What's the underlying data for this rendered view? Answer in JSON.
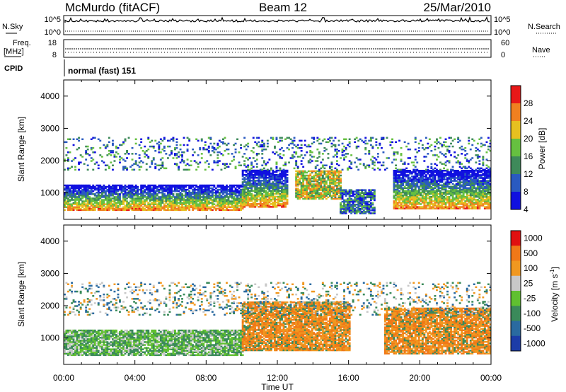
{
  "header": {
    "station": "McMurdo (fitACF)",
    "beam": "Beam 12",
    "date": "25/Mar/2010"
  },
  "aux_panels": {
    "nsky_label": "N.Sky",
    "nsearch_label": "N.Search",
    "noise_ticks_left": [
      "10^5",
      "10^0"
    ],
    "noise_ticks_right": [
      "10^5",
      "10^0"
    ],
    "freq_label_line1": "Freq.",
    "freq_label_line2": "[MHz]",
    "freq_ticks": [
      "18",
      "8"
    ],
    "nave_label": "Nave",
    "nave_ticks": [
      "60",
      "0"
    ],
    "cpid_label": "CPID",
    "cpid_value": "normal (fast) 151"
  },
  "colors": {
    "frame": "#000000",
    "background": "#ffffff"
  },
  "chart_data": [
    {
      "type": "heatmap",
      "name": "power",
      "xlabel": "Time UT",
      "ylabel": "Slant Range [km]",
      "xlim": [
        0,
        24
      ],
      "ylim": [
        180,
        4500
      ],
      "x_ticks": [
        "00:00",
        "04:00",
        "08:00",
        "12:00",
        "16:00",
        "20:00",
        "00:00"
      ],
      "y_ticks": [
        "1000",
        "2000",
        "3000",
        "4000"
      ],
      "y_tick_values": [
        1000,
        2000,
        3000,
        4000
      ],
      "colorbar": {
        "label": "Power [dB]",
        "ticks": [
          "4",
          "8",
          "12",
          "16",
          "20",
          "24",
          "28"
        ],
        "colors": [
          "#1010e0",
          "#2a5ac0",
          "#3e8a5a",
          "#66c040",
          "#e6c020",
          "#f08020",
          "#e81818"
        ]
      },
      "echo_regions": [
        {
          "t0": 0.0,
          "t1": 10.0,
          "r0": 450,
          "r1": 1250,
          "level": "high"
        },
        {
          "t0": 10.0,
          "t1": 12.5,
          "r0": 550,
          "r1": 1700,
          "level": "high"
        },
        {
          "t0": 13.0,
          "t1": 15.5,
          "r0": 800,
          "r1": 1700,
          "level": "mid"
        },
        {
          "t0": 15.5,
          "t1": 17.5,
          "r0": 350,
          "r1": 1100,
          "level": "low"
        },
        {
          "t0": 18.5,
          "t1": 24.0,
          "r0": 500,
          "r1": 1700,
          "level": "high"
        },
        {
          "t0": 0.0,
          "t1": 24.0,
          "r0": 1700,
          "r1": 2700,
          "level": "scatter"
        }
      ]
    },
    {
      "type": "heatmap",
      "name": "velocity",
      "xlabel": "Time UT",
      "ylabel": "Slant Range [km]",
      "xlim": [
        0,
        24
      ],
      "ylim": [
        180,
        4500
      ],
      "x_ticks": [
        "00:00",
        "04:00",
        "08:00",
        "12:00",
        "16:00",
        "20:00",
        "00:00"
      ],
      "y_ticks": [
        "1000",
        "2000",
        "3000",
        "4000"
      ],
      "y_tick_values": [
        1000,
        2000,
        3000,
        4000
      ],
      "colorbar": {
        "label": "Velocity [m s",
        "label_sup": "-1",
        "label_end": "]",
        "ticks": [
          "1000",
          "500",
          "100",
          "25",
          "-25",
          "-100",
          "-500",
          "-1000"
        ],
        "colors": [
          "#1c3ca8",
          "#2a6aa0",
          "#3a8a5a",
          "#60c030",
          "#c8c8c8",
          "#f09820",
          "#f07818",
          "#e01010"
        ]
      },
      "echo_regions": [
        {
          "t0": 0.0,
          "t1": 10.0,
          "r0": 450,
          "r1": 1250,
          "level": "green"
        },
        {
          "t0": 10.0,
          "t1": 16.0,
          "r0": 600,
          "r1": 2100,
          "level": "orange"
        },
        {
          "t0": 18.0,
          "t1": 24.0,
          "r0": 500,
          "r1": 1900,
          "level": "orange"
        },
        {
          "t0": 0.0,
          "t1": 24.0,
          "r0": 1700,
          "r1": 2700,
          "level": "scatter"
        }
      ]
    }
  ]
}
